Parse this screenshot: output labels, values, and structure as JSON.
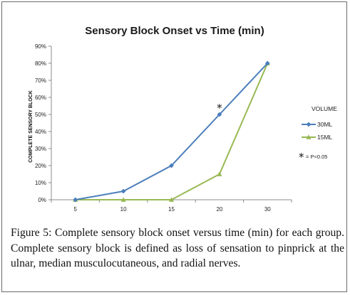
{
  "figure": {
    "caption_label": "Figure 5:",
    "caption_text": " Complete sensory block onset versus time (min) for each group. Complete sensory block is defined as loss of sensation to pinprick at the ulnar, median musculocutaneous, and radial nerves."
  },
  "chart_data": {
    "type": "line",
    "title": "Sensory Block Onset vs Time (min)",
    "xlabel": "",
    "ylabel": "COMPLETE SENSORY BLOCK",
    "categories": [
      "5",
      "10",
      "15",
      "20",
      "30"
    ],
    "ylim": [
      0,
      90
    ],
    "yticks": [
      "0%",
      "10%",
      "20%",
      "30%",
      "40%",
      "50%",
      "60%",
      "70%",
      "80%",
      "90%"
    ],
    "y_unit": "%",
    "grid": false,
    "legend": {
      "title": "VOLUME",
      "position": "right"
    },
    "series": [
      {
        "name": "30ML",
        "color": "#4a7ebb",
        "marker": "diamond",
        "values": [
          0,
          5,
          20,
          50,
          80
        ]
      },
      {
        "name": "15ML",
        "color": "#98b954",
        "marker": "triangle",
        "values": [
          0,
          0,
          0,
          15,
          80
        ]
      }
    ],
    "annotations": [
      {
        "text": "*",
        "series": "30ML",
        "category": "20"
      }
    ],
    "significance_note": {
      "symbol": "*",
      "text": " = P<0.05"
    }
  }
}
